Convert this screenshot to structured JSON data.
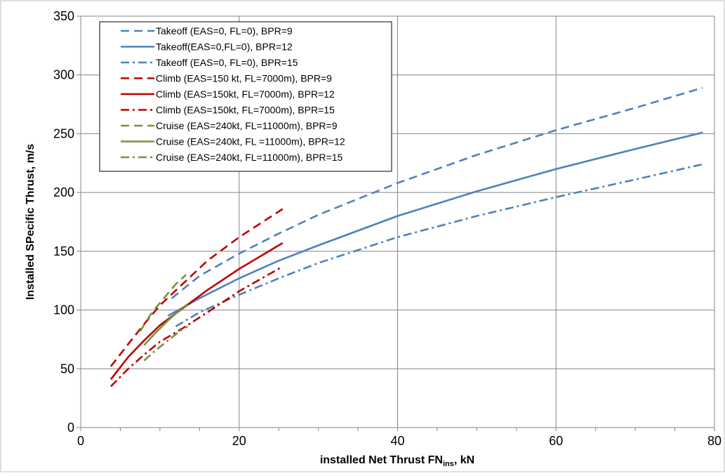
{
  "chart_data": {
    "type": "line",
    "xlabel": "installed  Net Thrust FN",
    "xlabel_sub": "ins",
    "xlabel_suffix": ", kN",
    "ylabel": "Installed SPecific Thrust, m/s",
    "xlim": [
      0,
      80
    ],
    "ylim": [
      0,
      350
    ],
    "x_ticks": [
      0,
      20,
      40,
      60,
      80
    ],
    "y_ticks": [
      0,
      50,
      100,
      150,
      200,
      250,
      300,
      350
    ],
    "grid": true,
    "legend_position": "top-left",
    "series": [
      {
        "name": "Takeoff (EAS=0, FL=0), BPR=9",
        "color": "#4f81bd",
        "dash": "dashed",
        "x": [
          11.5,
          15,
          20,
          25,
          30,
          40,
          50,
          60,
          70,
          78.5
        ],
        "y": [
          110,
          129,
          148,
          165,
          181,
          208,
          232,
          253,
          272,
          289
        ]
      },
      {
        "name": "Takeoff(EAS=0,FL=0), BPR=12",
        "color": "#4f81bd",
        "dash": "solid",
        "x": [
          11,
          15,
          20,
          25,
          30,
          40,
          50,
          60,
          70,
          78.5
        ],
        "y": [
          95,
          110,
          127,
          142,
          155,
          180,
          201,
          220,
          237,
          251
        ]
      },
      {
        "name": "Takeoff (EAS=0, FL=0), BPR=15",
        "color": "#4f81bd",
        "dash": "dashdot",
        "x": [
          12,
          15,
          20,
          25,
          30,
          40,
          50,
          60,
          70,
          78.5
        ],
        "y": [
          86,
          98,
          113,
          127,
          140,
          162,
          180,
          196,
          211,
          224
        ]
      },
      {
        "name": "Climb (EAS=150 kt, FL=7000m), BPR=9",
        "color": "#c00000",
        "dash": "dashed",
        "x": [
          3.8,
          6,
          8,
          10,
          13,
          16,
          20,
          25.5
        ],
        "y": [
          52,
          71,
          88,
          104,
          123,
          142,
          162,
          186
        ]
      },
      {
        "name": "Climb (EAS=150kt, FL=7000m), BPR=12",
        "color": "#c00000",
        "dash": "solid",
        "x": [
          3.8,
          6,
          8,
          10,
          13,
          16,
          20,
          25.5
        ],
        "y": [
          41,
          60,
          74,
          87,
          102,
          117,
          135,
          157
        ]
      },
      {
        "name": "Climb (EAS=150kt, FL=7000m), BPR=15",
        "color": "#c00000",
        "dash": "dashdot",
        "x": [
          3.8,
          6,
          8,
          10,
          13,
          16,
          20,
          25.5
        ],
        "y": [
          35,
          50,
          62,
          73,
          85,
          98,
          116,
          137
        ]
      },
      {
        "name": "Cruise (EAS=240kt, FL=11000m), BPR=9",
        "color": "#77933c",
        "dash": "dashed",
        "x": [
          7.5,
          9,
          10.5,
          12,
          13.3
        ],
        "y": [
          82,
          98,
          110,
          122,
          130
        ]
      },
      {
        "name": "Cruise (EAS=240kt, FL =11000m), BPR=12",
        "color": "#77933c",
        "dash": "solid",
        "x": [
          8,
          9.5,
          11,
          12.5,
          13.5
        ],
        "y": [
          70,
          81,
          91,
          100,
          105
        ]
      },
      {
        "name": "Cruise (EAS=240kt, FL=11000m), BPR=15",
        "color": "#77933c",
        "dash": "dashdot",
        "x": [
          8,
          9.5,
          11,
          12.5,
          13.5
        ],
        "y": [
          57,
          66,
          74,
          82,
          86
        ]
      }
    ]
  }
}
